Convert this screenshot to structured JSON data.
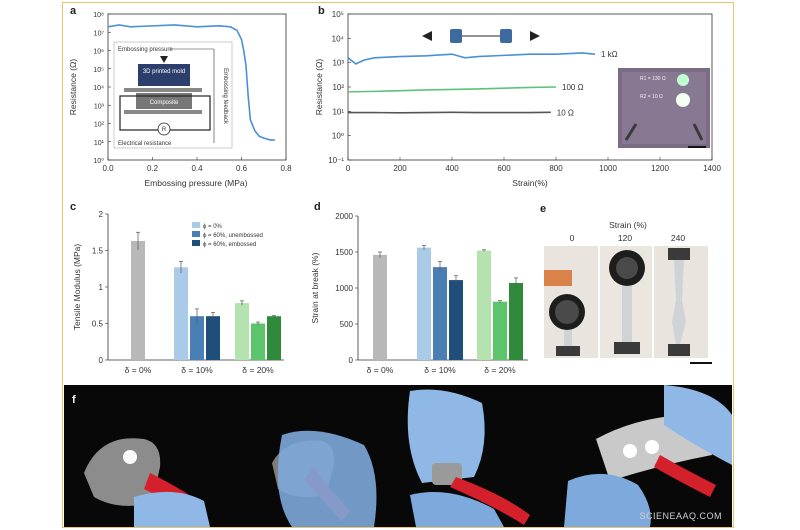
{
  "figure": {
    "panel_letters": [
      "a",
      "b",
      "c",
      "d",
      "e",
      "f"
    ],
    "watermark": "SCIENEAAQ.COM"
  },
  "chart_data": [
    {
      "panel": "a",
      "type": "line",
      "xlabel": "Embossing pressure (MPa)",
      "ylabel": "Resistance (Ω)",
      "xlim": [
        0,
        0.8
      ],
      "ylim_log10": [
        0,
        8
      ],
      "x_ticks": [
        "0.0",
        "0.2",
        "0.4",
        "0.6",
        "0.8"
      ],
      "y_ticks": [
        "10⁰",
        "10¹",
        "10²",
        "10³",
        "10⁴",
        "10⁵",
        "10⁶",
        "10⁷",
        "10⁸"
      ],
      "series": [
        {
          "x": [
            0.0,
            0.05,
            0.1,
            0.2,
            0.3,
            0.4,
            0.5,
            0.55,
            0.58,
            0.6,
            0.61,
            0.62,
            0.63,
            0.64,
            0.66,
            0.68,
            0.7,
            0.73,
            0.75
          ],
          "y_log10": [
            7.3,
            7.4,
            7.3,
            7.35,
            7.4,
            7.3,
            7.35,
            7.3,
            7.1,
            6.6,
            6.0,
            5.2,
            3.5,
            2.2,
            1.6,
            1.3,
            1.2,
            1.1,
            1.1
          ]
        }
      ],
      "color": "#4a90d9",
      "inset": {
        "labels": [
          "Embossing pressure",
          "3D printed mold",
          "Composite",
          "Electrical resistance",
          "R",
          "Embossing feedback"
        ]
      }
    },
    {
      "panel": "b",
      "type": "line",
      "xlabel": "Strain(%)",
      "ylabel": "Resistance (Ω)",
      "xlim": [
        0,
        1400
      ],
      "ylim_log10": [
        -1,
        5
      ],
      "x_ticks": [
        "0",
        "200",
        "400",
        "600",
        "800",
        "1000",
        "1200",
        "1400"
      ],
      "y_ticks": [
        "10⁻¹",
        "10⁰",
        "10¹",
        "10²",
        "10³",
        "10⁴",
        "10⁵"
      ],
      "series": [
        {
          "name": "1 kΩ",
          "color": "#4a90d9",
          "x": [
            0,
            30,
            60,
            100,
            200,
            300,
            400,
            450,
            500,
            600,
            700,
            800,
            900,
            950
          ],
          "y_log10": [
            3.2,
            2.95,
            3.1,
            3.2,
            3.25,
            3.28,
            3.35,
            3.2,
            3.25,
            3.3,
            3.35,
            3.35,
            3.4,
            3.35
          ]
        },
        {
          "name": "100 Ω",
          "color": "#5cc47a",
          "x": [
            0,
            100,
            200,
            300,
            400,
            500,
            600,
            700,
            800
          ],
          "y_log10": [
            1.8,
            1.82,
            1.85,
            1.88,
            1.9,
            1.92,
            1.95,
            1.98,
            2.0
          ]
        },
        {
          "name": "10 Ω",
          "color": "#555555",
          "x": [
            0,
            100,
            200,
            300,
            400,
            500,
            600,
            700,
            780
          ],
          "y_log10": [
            0.95,
            0.95,
            0.94,
            0.95,
            0.96,
            0.95,
            0.95,
            0.95,
            0.96
          ]
        }
      ],
      "inset_labels": [
        "R1 = 130 Ω",
        "R2 = 10 Ω"
      ]
    },
    {
      "panel": "c",
      "type": "bar",
      "ylabel": "Tensile Modulus (MPa)",
      "ylim": [
        0,
        2
      ],
      "y_ticks": [
        "0",
        "0.5",
        "1",
        "1.5",
        "2"
      ],
      "groups": [
        "δ = 0%",
        "δ = 10%",
        "δ = 20%"
      ],
      "legend": [
        "ϕ = 0%",
        "ϕ = 60%, unembossed",
        "ϕ = 60%, embossed"
      ],
      "bars": [
        {
          "group": 0,
          "value": 1.63,
          "error": 0.12,
          "color": "#b8b8b8"
        },
        {
          "group": 1,
          "value": 1.27,
          "error": 0.08,
          "color": "#a9cbe8"
        },
        {
          "group": 1,
          "value": 0.6,
          "error": 0.1,
          "color": "#4a7fb5"
        },
        {
          "group": 1,
          "value": 0.6,
          "error": 0.05,
          "color": "#1f4e7a"
        },
        {
          "group": 2,
          "value": 0.78,
          "error": 0.03,
          "color": "#b5e3b0"
        },
        {
          "group": 2,
          "value": 0.5,
          "error": 0.02,
          "color": "#5cc46a"
        },
        {
          "group": 2,
          "value": 0.6,
          "error": 0.01,
          "color": "#2f8a3c"
        }
      ]
    },
    {
      "panel": "d",
      "type": "bar",
      "ylabel": "Strain at break (%)",
      "ylim": [
        0,
        2000
      ],
      "y_ticks": [
        "0",
        "500",
        "1000",
        "1500",
        "2000"
      ],
      "groups": [
        "δ = 0%",
        "δ = 10%",
        "δ = 20%"
      ],
      "bars": [
        {
          "group": 0,
          "value": 1460,
          "error": 40,
          "color": "#b8b8b8"
        },
        {
          "group": 1,
          "value": 1560,
          "error": 30,
          "color": "#a9cbe8"
        },
        {
          "group": 1,
          "value": 1290,
          "error": 80,
          "color": "#4a7fb5"
        },
        {
          "group": 1,
          "value": 1110,
          "error": 60,
          "color": "#1f4e7a"
        },
        {
          "group": 2,
          "value": 1520,
          "error": 10,
          "color": "#b5e3b0"
        },
        {
          "group": 2,
          "value": 810,
          "error": 15,
          "color": "#5cc46a"
        },
        {
          "group": 2,
          "value": 1070,
          "error": 70,
          "color": "#2f8a3c"
        }
      ]
    }
  ],
  "panel_e": {
    "title": "Strain (%)",
    "strains": [
      "0",
      "120",
      "240"
    ]
  }
}
